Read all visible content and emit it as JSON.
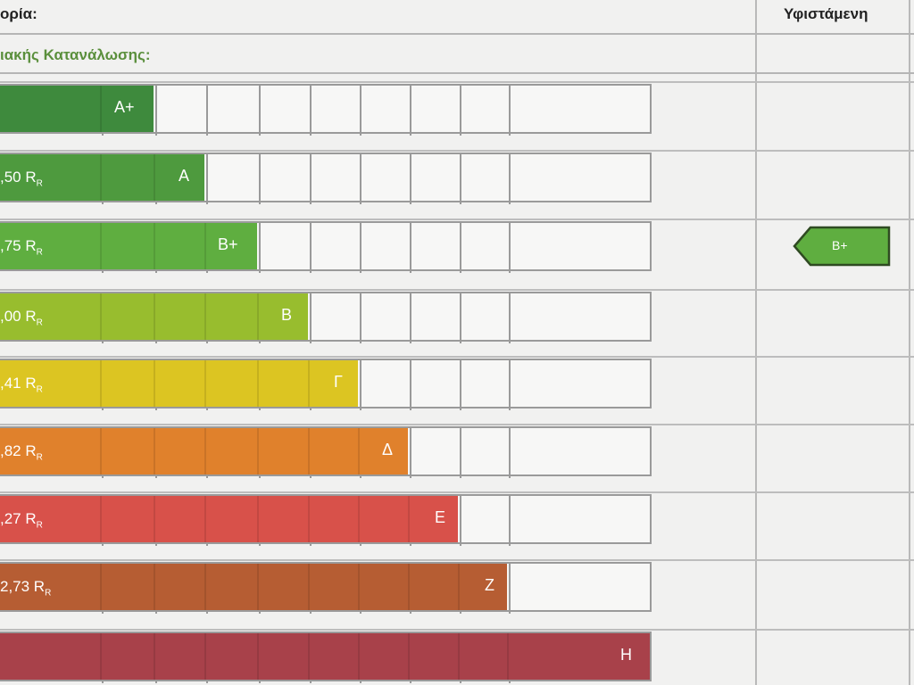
{
  "header": {
    "category_label": "ορία:",
    "existing_label": "Υφιστάμενη",
    "subtitle": "ιακής Κατανάλωσης:"
  },
  "classes": [
    {
      "value": "",
      "unit": "",
      "letter": "A+",
      "color": "#3e8a3d"
    },
    {
      "value": ",50 R",
      "unit": "R",
      "letter": "A",
      "color": "#4e9a3e"
    },
    {
      "value": ",75 R",
      "unit": "R",
      "letter": "B+",
      "color": "#5fae40"
    },
    {
      "value": ",00 R",
      "unit": "R",
      "letter": "B",
      "color": "#98bd2e"
    },
    {
      "value": ",41 R",
      "unit": "R",
      "letter": "Γ",
      "color": "#dcc522"
    },
    {
      "value": ",82 R",
      "unit": "R",
      "letter": "Δ",
      "color": "#e0812c"
    },
    {
      "value": ",27 R",
      "unit": "R",
      "letter": "E",
      "color": "#d8514a"
    },
    {
      "value": "2,73 R",
      "unit": "R",
      "letter": "Z",
      "color": "#b65d33"
    },
    {
      "value": "",
      "unit": "",
      "letter": "H",
      "color": "#a8414a"
    }
  ],
  "current_rating": {
    "label": "B+",
    "color": "#5fae40"
  }
}
